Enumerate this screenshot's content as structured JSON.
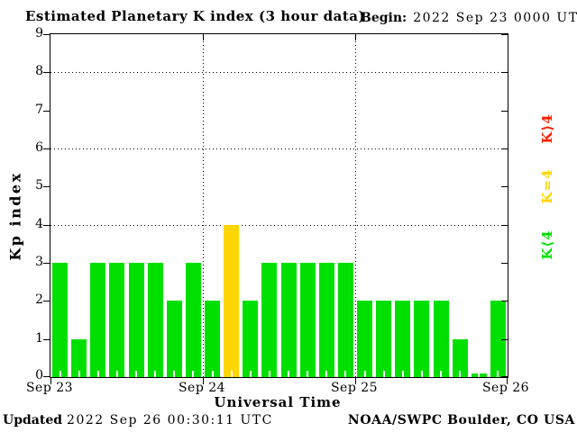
{
  "header": {
    "begin_label": "Begin:",
    "begin_value": "2022 Sep 23 0000 UTC"
  },
  "chart_data": {
    "type": "bar",
    "title": "Estimated Planetary K index (3 hour data)",
    "ylabel": "Kp index",
    "xlabel": "Universal Time",
    "ylim": [
      0,
      9
    ],
    "yticks": [
      0,
      1,
      2,
      3,
      4,
      5,
      6,
      7,
      8,
      9
    ],
    "grid_y": [
      4,
      6,
      8
    ],
    "grid": "dotted",
    "bar_period_hours": 3,
    "day_labels": [
      "Sep 23",
      "Sep 24",
      "Sep 25",
      "Sep 26"
    ],
    "values": [
      3,
      1,
      3,
      3,
      3,
      3,
      2,
      3,
      2,
      4,
      2,
      3,
      3,
      3,
      3,
      3,
      2,
      2,
      2,
      2,
      2,
      1,
      0,
      2
    ],
    "colors": {
      "low": "#00E000",
      "mid": "#FFD500",
      "high": "#FF2000"
    },
    "legend_position": "right"
  },
  "legend": {
    "items": [
      {
        "label": "K⟩4",
        "color": "#FF2000"
      },
      {
        "label": "K=4",
        "color": "#FFD500"
      },
      {
        "label": "K⟨4",
        "color": "#00E000"
      }
    ]
  },
  "footer": {
    "updated_label": "Updated",
    "updated_value": "2022 Sep 26 00:30:11 UTC",
    "credit": "NOAA/SWPC Boulder, CO USA"
  }
}
